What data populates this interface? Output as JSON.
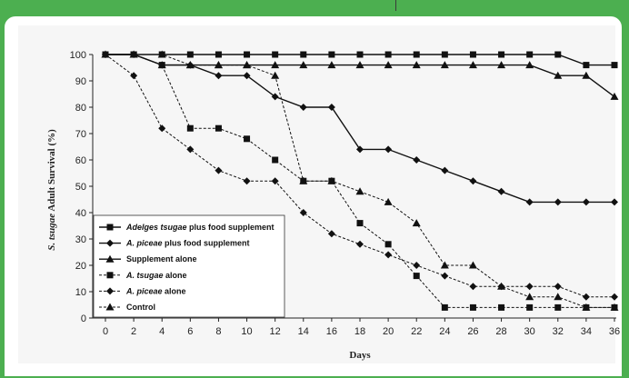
{
  "chart_data": {
    "type": "line",
    "xlabel": "Days",
    "ylabel_parts": [
      {
        "text": "S. tsugae",
        "italic": true
      },
      {
        "text": " Adult Survival (%)",
        "italic": false
      }
    ],
    "x": [
      0,
      2,
      4,
      6,
      8,
      10,
      12,
      14,
      16,
      18,
      20,
      22,
      24,
      26,
      28,
      30,
      32,
      34,
      36
    ],
    "xlim": [
      0,
      36
    ],
    "ylim": [
      0,
      100
    ],
    "yticks": [
      0,
      10,
      20,
      30,
      40,
      50,
      60,
      70,
      80,
      90,
      100
    ],
    "legend_position": "bottom-left",
    "grid": false,
    "series": [
      {
        "name_parts": [
          {
            "text": "Adelges tsugae",
            "italic": true
          },
          {
            "text": " plus food supplement",
            "italic": false
          }
        ],
        "marker": "square",
        "dash": "solid",
        "values": [
          100,
          100,
          100,
          100,
          100,
          100,
          100,
          100,
          100,
          100,
          100,
          100,
          100,
          100,
          100,
          100,
          100,
          96,
          96
        ]
      },
      {
        "name_parts": [
          {
            "text": "A. piceae",
            "italic": true
          },
          {
            "text": " plus food supplement",
            "italic": false
          }
        ],
        "marker": "diamond",
        "dash": "solid",
        "values": [
          100,
          100,
          96,
          96,
          92,
          92,
          84,
          80,
          80,
          64,
          64,
          60,
          56,
          52,
          48,
          44,
          44,
          44,
          44
        ]
      },
      {
        "name_parts": [
          {
            "text": "Supplement alone",
            "italic": false
          }
        ],
        "marker": "triangle",
        "dash": "solid",
        "values": [
          100,
          100,
          96,
          96,
          96,
          96,
          96,
          96,
          96,
          96,
          96,
          96,
          96,
          96,
          96,
          96,
          92,
          92,
          84
        ]
      },
      {
        "name_parts": [
          {
            "text": "A. tsugae",
            "italic": true
          },
          {
            "text": " alone",
            "italic": false
          }
        ],
        "marker": "square",
        "dash": "dashed",
        "values": [
          100,
          100,
          96,
          72,
          72,
          68,
          60,
          52,
          52,
          36,
          28,
          16,
          4,
          4,
          4,
          4,
          4,
          4,
          4
        ]
      },
      {
        "name_parts": [
          {
            "text": "A. piceae",
            "italic": true
          },
          {
            "text": " alone",
            "italic": false
          }
        ],
        "marker": "diamond",
        "dash": "dashed",
        "values": [
          100,
          92,
          72,
          64,
          56,
          52,
          52,
          40,
          32,
          28,
          24,
          20,
          16,
          12,
          12,
          12,
          12,
          8,
          8
        ]
      },
      {
        "name_parts": [
          {
            "text": "Control",
            "italic": false
          }
        ],
        "marker": "triangle",
        "dash": "dashed",
        "values": [
          100,
          100,
          100,
          96,
          96,
          96,
          92,
          52,
          52,
          48,
          44,
          36,
          20,
          20,
          12,
          8,
          8,
          4,
          4
        ]
      }
    ]
  }
}
